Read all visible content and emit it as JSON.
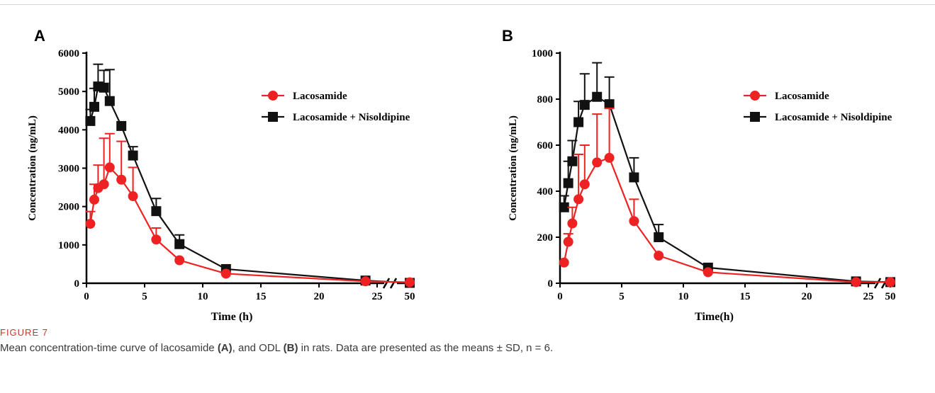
{
  "figure": {
    "label": "FIGURE 7",
    "caption": {
      "part1": "Mean concentration-time curve of lacosamide ",
      "ref_a": "(A)",
      "part2": ", and ODL ",
      "ref_b": "(B)",
      "part3": " in rats. Data are presented as the means ± SD, n = 6."
    }
  },
  "colors": {
    "lacosamide": "#ee2222",
    "combo": "#111111",
    "axis": "#000000"
  },
  "chart_data": [
    {
      "type": "line",
      "panel_label": "A",
      "xlabel": "Time (h)",
      "ylabel": "Concentration (ng/mL)",
      "ylim": [
        0,
        6000
      ],
      "yticks": [
        0,
        1000,
        2000,
        3000,
        4000,
        5000,
        6000
      ],
      "xlim": [
        0,
        25
      ],
      "xticks": [
        0,
        5,
        10,
        15,
        20,
        25
      ],
      "x_break": {
        "after": 25,
        "end_tick": 50
      },
      "legend_position": "top-right",
      "series": [
        {
          "name": "Lacosamide",
          "color": "#ee2222",
          "marker": "circle",
          "x": [
            0.33,
            0.67,
            1,
            1.5,
            2,
            3,
            4,
            6,
            8,
            12,
            24,
            48
          ],
          "y": [
            1550,
            2180,
            2480,
            2580,
            3020,
            2700,
            2270,
            1140,
            600,
            250,
            50,
            25
          ],
          "sd": [
            320,
            400,
            600,
            1200,
            880,
            1000,
            750,
            300,
            0,
            0,
            0,
            0
          ]
        },
        {
          "name": "Lacosamide + Nisoldipine",
          "color": "#111111",
          "marker": "square",
          "x": [
            0.33,
            0.67,
            1,
            1.5,
            2,
            3,
            4,
            6,
            8,
            12,
            24,
            48
          ],
          "y": [
            4230,
            4600,
            5130,
            5100,
            4750,
            4100,
            3330,
            1880,
            1020,
            370,
            70,
            10
          ],
          "sd": [
            300,
            480,
            580,
            450,
            820,
            0,
            230,
            330,
            240,
            0,
            0,
            0
          ]
        }
      ]
    },
    {
      "type": "line",
      "panel_label": "B",
      "xlabel": "Time(h)",
      "ylabel": "Concentration (ng/mL)",
      "ylim": [
        0,
        1000
      ],
      "yticks": [
        0,
        200,
        400,
        600,
        800,
        1000
      ],
      "xlim": [
        0,
        25
      ],
      "xticks": [
        0,
        5,
        10,
        15,
        20,
        25
      ],
      "x_break": {
        "after": 25,
        "end_tick": 50
      },
      "legend_position": "top-right",
      "series": [
        {
          "name": "Lacosamide",
          "color": "#ee2222",
          "marker": "circle",
          "x": [
            0.33,
            0.67,
            1,
            1.5,
            2,
            3,
            4,
            6,
            8,
            12,
            24,
            48
          ],
          "y": [
            90,
            180,
            260,
            365,
            430,
            525,
            545,
            270,
            120,
            48,
            5,
            5
          ],
          "sd": [
            0,
            35,
            70,
            195,
            170,
            210,
            215,
            95,
            0,
            0,
            0,
            0
          ]
        },
        {
          "name": "Lacosamide + Nisoldipine",
          "color": "#111111",
          "marker": "square",
          "x": [
            0.33,
            0.67,
            1,
            1.5,
            2,
            3,
            4,
            6,
            8,
            12,
            24,
            48
          ],
          "y": [
            330,
            435,
            530,
            700,
            775,
            810,
            778,
            460,
            200,
            68,
            8,
            5
          ],
          "sd": [
            50,
            95,
            90,
            90,
            135,
            148,
            118,
            85,
            55,
            0,
            0,
            0
          ]
        }
      ]
    }
  ]
}
